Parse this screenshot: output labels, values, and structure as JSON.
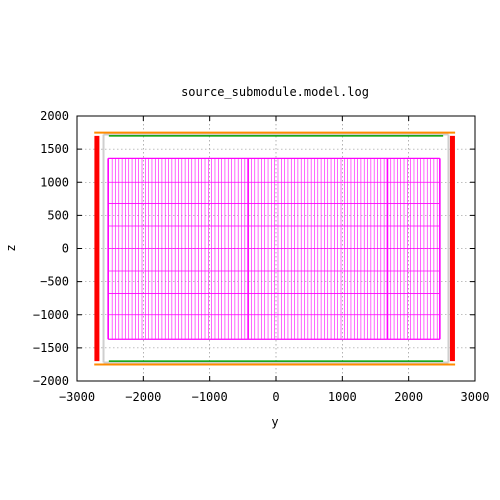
{
  "chart_data": {
    "type": "line",
    "title": "source_submodule.model.log",
    "xlabel": "y",
    "ylabel": "z",
    "xlim": [
      -3000,
      3000
    ],
    "ylim": [
      -2000,
      2000
    ],
    "grid": true,
    "x_ticks": [
      -3000,
      -2000,
      -1000,
      0,
      1000,
      2000,
      3000
    ],
    "y_ticks": [
      -2000,
      -1500,
      -1000,
      -500,
      0,
      500,
      1000,
      1500,
      2000
    ],
    "x_tick_labels": [
      "−3000",
      "−2000",
      "−1000",
      "0",
      "1000",
      "2000",
      "3000"
    ],
    "y_tick_labels": [
      "−2000",
      "−1500",
      "−1000",
      "−500",
      "0",
      "500",
      "1000",
      "1500",
      "2000"
    ],
    "colors": {
      "frame": "#ff0000",
      "grid_module": "#ff00ff",
      "outer_top": "#ff8c00",
      "outer_inner": "#00a000",
      "outer_light": "#cfcfcf",
      "grid_lines": "#808080"
    },
    "series": [
      {
        "style": "frame_sides",
        "color": "#ff0000",
        "segments": [
          [
            [
              -2700,
              -1700
            ],
            [
              -2700,
              1700
            ]
          ],
          [
            [
              2660,
              -1700
            ],
            [
              2660,
              1700
            ]
          ]
        ]
      },
      {
        "style": "outer_box",
        "color": "#ff8c00",
        "segments": [
          [
            [
              -2740,
              1750
            ],
            [
              2700,
              1750
            ]
          ],
          [
            [
              -2740,
              -1750
            ],
            [
              2700,
              -1750
            ]
          ]
        ]
      },
      {
        "style": "inner_box",
        "color": "#00a000",
        "segments": [
          [
            [
              -2520,
              1700
            ],
            [
              2520,
              1700
            ]
          ],
          [
            [
              -2520,
              -1700
            ],
            [
              2520,
              -1700
            ]
          ]
        ]
      },
      {
        "style": "light_box",
        "color": "#cfcfcf",
        "segments": [
          [
            [
              -2600,
              1720
            ],
            [
              2600,
              1720
            ]
          ],
          [
            [
              -2600,
              -1720
            ],
            [
              2600,
              -1720
            ]
          ],
          [
            [
              -2600,
              -1720
            ],
            [
              -2600,
              1720
            ]
          ],
          [
            [
              2600,
              -1720
            ],
            [
              2600,
              1720
            ]
          ]
        ]
      },
      {
        "style": "module_grid",
        "color": "#ff00ff",
        "y_range": [
          -2530,
          2470
        ],
        "z_range": [
          -1370,
          1360
        ],
        "vertical_lines_y": [
          -2530,
          -2470,
          -2420,
          -2370,
          -2320,
          -2270,
          -2220,
          -2170,
          -2120,
          -2070,
          -2020,
          -1970,
          -1920,
          -1870,
          -1820,
          -1770,
          -1720,
          -1670,
          -1620,
          -1570,
          -1520,
          -1470,
          -1420,
          -1370,
          -1320,
          -1270,
          -1220,
          -1170,
          -1120,
          -1070,
          -1020,
          -970,
          -920,
          -870,
          -820,
          -770,
          -720,
          -670,
          -620,
          -570,
          -520,
          -470,
          -420,
          -370,
          -320,
          -270,
          -220,
          -170,
          -120,
          -70,
          -20,
          30,
          80,
          130,
          180,
          230,
          280,
          330,
          380,
          430,
          480,
          530,
          580,
          630,
          680,
          730,
          780,
          830,
          880,
          930,
          980,
          1030,
          1080,
          1130,
          1180,
          1230,
          1280,
          1330,
          1380,
          1430,
          1480,
          1530,
          1580,
          1630,
          1680,
          1730,
          1780,
          1830,
          1880,
          1930,
          1980,
          2030,
          2080,
          2130,
          2180,
          2230,
          2280,
          2330,
          2380,
          2430,
          2470
        ],
        "heavy_lines_y": [
          -2530,
          -2100,
          -1680,
          -1260,
          -840,
          -420,
          0,
          420,
          840,
          1260,
          1680,
          2100,
          2470
        ],
        "horizontal_lines_z": [
          -1370,
          -1000,
          -680,
          -340,
          0,
          340,
          680,
          1000,
          1360
        ],
        "heavy_lines_z": [
          -1370,
          1360
        ]
      }
    ]
  }
}
